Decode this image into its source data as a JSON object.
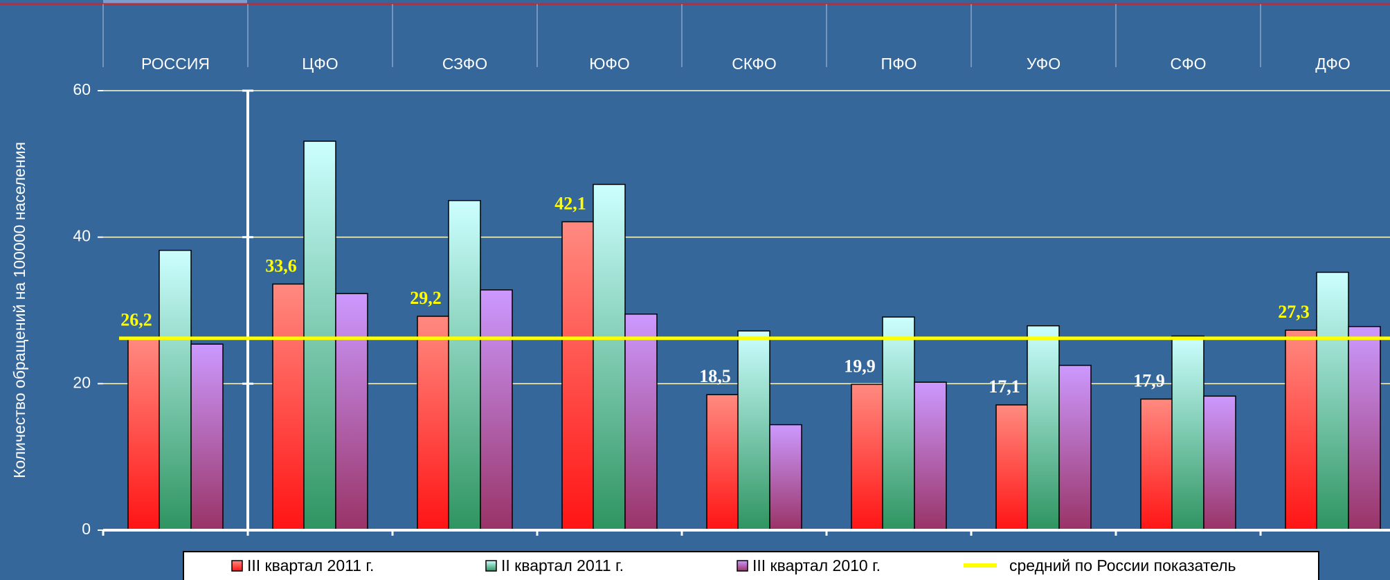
{
  "chart_data": {
    "type": "bar",
    "y_axis_label": "Количество обращений на 100000 населения",
    "categories": [
      "РОССИЯ",
      "ЦФО",
      "СЗФО",
      "ЮФО",
      "СКФО",
      "ПФО",
      "УФО",
      "СФО",
      "ДФО"
    ],
    "series": [
      {
        "name": "III квартал 2011 г.",
        "color": "#ff5050",
        "values": [
          26.2,
          33.6,
          29.2,
          42.1,
          18.5,
          19.9,
          17.1,
          17.9,
          27.3
        ],
        "value_labels": [
          "26,2",
          "33,6",
          "29,2",
          "42,1",
          "18,5",
          "19,9",
          "17,1",
          "17,9",
          "27,3"
        ]
      },
      {
        "name": "II квартал 2011 г.",
        "color": "#99e6d9",
        "values": [
          38.2,
          53.1,
          45.0,
          47.2,
          27.2,
          29.1,
          27.9,
          26.5,
          35.2
        ]
      },
      {
        "name": "III квартал 2010 г.",
        "color": "#bb88ee",
        "values": [
          25.4,
          32.3,
          32.8,
          29.5,
          14.4,
          20.2,
          22.5,
          18.3,
          27.8
        ]
      }
    ],
    "reference_line": {
      "name": "средний по России показатель",
      "value": 26.2,
      "color": "#ffff00"
    },
    "ylim": [
      0,
      60
    ],
    "yticks": [
      0,
      20,
      40,
      60
    ],
    "grid": true
  }
}
